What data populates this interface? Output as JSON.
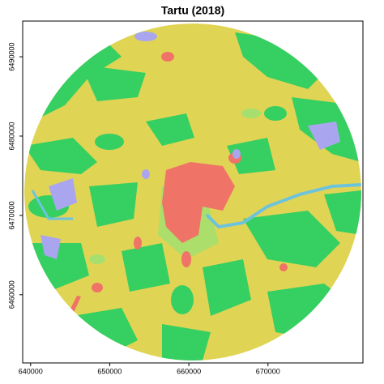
{
  "map": {
    "title": "Tartu (2018)",
    "xlim": [
      639000,
      682000
    ],
    "xticks": [
      640000,
      650000,
      660000,
      670000
    ],
    "ylim": [
      6451400,
      6494500
    ],
    "yticks": [
      6460000,
      6470000,
      6480000,
      6490000
    ]
  }
}
